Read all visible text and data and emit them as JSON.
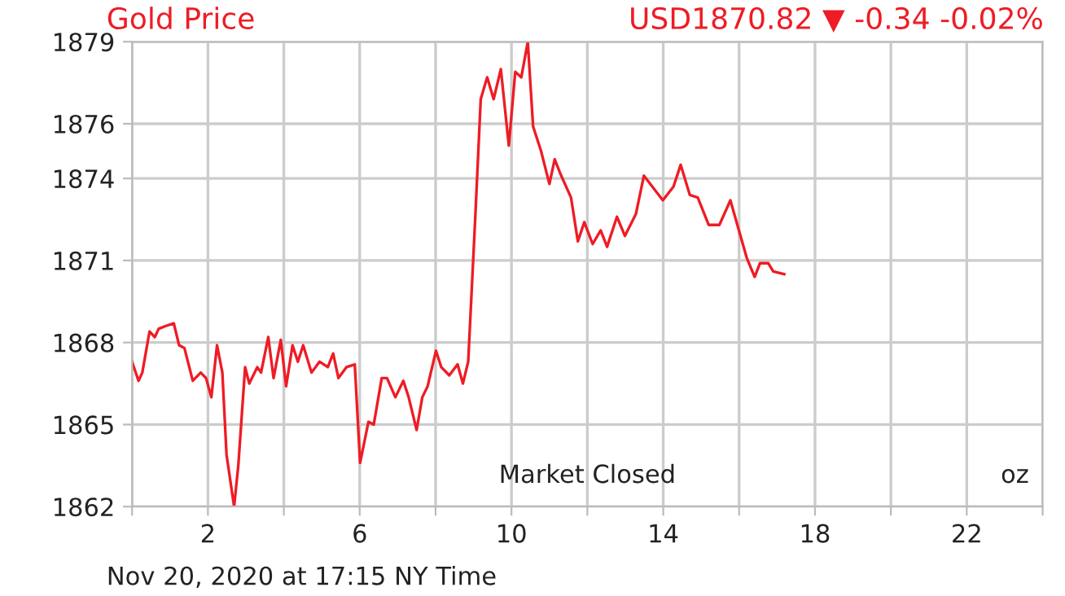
{
  "chart_data": {
    "type": "line",
    "title": "Gold Price",
    "subtitle": "USD1870.82 ▼ -0.34 -0.02%",
    "annotations": [
      "Market Closed",
      "oz",
      "Nov 20, 2020 at 17:15 NY Time"
    ],
    "series": [
      {
        "color": "#ee1c25",
        "x": [
          0,
          0.17,
          0.27,
          0.46,
          0.6,
          0.7,
          0.88,
          1.1,
          1.24,
          1.38,
          1.6,
          1.81,
          1.95,
          2.09,
          2.24,
          2.38,
          2.49,
          2.69,
          2.8,
          2.98,
          3.09,
          3.3,
          3.4,
          3.59,
          3.73,
          3.92,
          4.06,
          4.23,
          4.37,
          4.51,
          4.73,
          4.94,
          5.16,
          5.3,
          5.44,
          5.65,
          5.87,
          6.01,
          6.23,
          6.37,
          6.58,
          6.72,
          6.94,
          7.15,
          7.29,
          7.5,
          7.65,
          7.79,
          8.01,
          8.15,
          8.36,
          8.58,
          8.72,
          8.86,
          9.05,
          9.19,
          9.36,
          9.53,
          9.72,
          9.93,
          10.1,
          10.26,
          10.43,
          10.57,
          10.78,
          11.0,
          11.14,
          11.28,
          11.57,
          11.75,
          11.92,
          12.14,
          12.35,
          12.52,
          12.78,
          12.99,
          13.28,
          13.49,
          13.99,
          14.27,
          14.46,
          14.7,
          14.91,
          15.2,
          15.48,
          15.77,
          16.2,
          16.41,
          16.55,
          16.77,
          16.9,
          17.19
        ],
        "values": [
          1867.3,
          1866.6,
          1866.9,
          1868.4,
          1868.2,
          1868.5,
          1868.6,
          1868.7,
          1867.9,
          1867.8,
          1866.6,
          1866.9,
          1866.7,
          1866.0,
          1867.9,
          1866.9,
          1863.9,
          1862.0,
          1863.5,
          1867.1,
          1866.5,
          1867.1,
          1866.9,
          1868.2,
          1866.7,
          1868.1,
          1866.4,
          1867.9,
          1867.3,
          1867.9,
          1866.9,
          1867.3,
          1867.1,
          1867.6,
          1866.7,
          1867.1,
          1867.2,
          1863.6,
          1865.1,
          1865.0,
          1866.7,
          1866.7,
          1866.0,
          1866.6,
          1866.0,
          1864.8,
          1866.0,
          1866.4,
          1867.7,
          1867.1,
          1866.8,
          1867.2,
          1866.5,
          1867.3,
          1872.7,
          1876.9,
          1877.7,
          1876.9,
          1878.0,
          1875.2,
          1877.9,
          1877.7,
          1879.0,
          1875.9,
          1875.0,
          1873.8,
          1874.7,
          1874.2,
          1873.3,
          1871.7,
          1872.4,
          1871.6,
          1872.1,
          1871.5,
          1872.6,
          1871.9,
          1872.7,
          1874.1,
          1873.2,
          1873.7,
          1874.5,
          1873.4,
          1873.3,
          1872.3,
          1872.3,
          1873.2,
          1871.1,
          1870.4,
          1870.9,
          1870.9,
          1870.6,
          1870.5
        ]
      }
    ],
    "xlim": [
      0,
      24
    ],
    "xticks": [
      {
        "value": 0,
        "label": null
      },
      2,
      {
        "value": 4,
        "label": null
      },
      6,
      {
        "value": 8,
        "label": null
      },
      10,
      {
        "value": 12,
        "label": null
      },
      14,
      {
        "value": 16,
        "label": null
      },
      18,
      {
        "value": 20,
        "label": null
      },
      22,
      {
        "value": 24,
        "label": null
      }
    ],
    "ylim": [
      1862,
      1879
    ],
    "yticks": [
      1862,
      1865,
      1868,
      1871,
      1874,
      1876,
      1879
    ],
    "grid": true,
    "line_style": "solid",
    "marker": "none",
    "legend": false
  }
}
